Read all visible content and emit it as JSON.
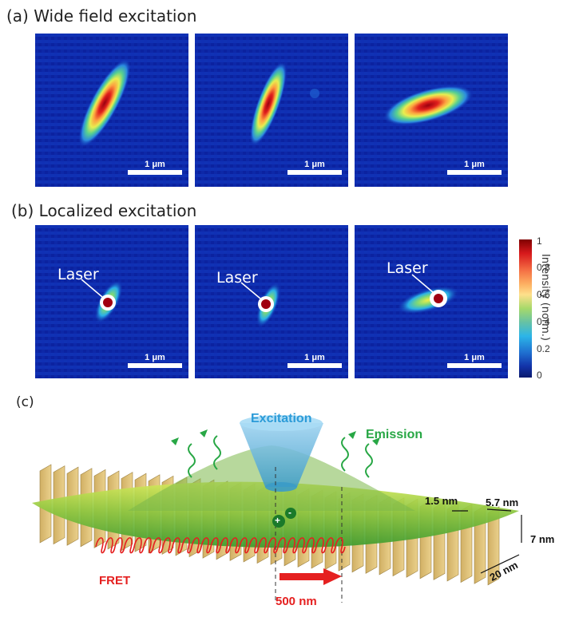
{
  "panel_a": {
    "title": "(a) Wide field excitation"
  },
  "panel_b": {
    "title": "(b) Localized excitation",
    "laser_label": "Laser"
  },
  "panel_c": {
    "label": "(c)",
    "excitation": "Excitation",
    "emission": "Emission",
    "fret": "FRET",
    "plus": "+",
    "minus": "-",
    "distance": "500 nm",
    "spacing": "1.5 nm",
    "thickness": "5.7 nm",
    "height": "7 nm",
    "length": "20 nm"
  },
  "scale_bar": "1 μm",
  "colorbar": {
    "label": "Intensity (norm.)",
    "ticks": [
      "1",
      "0.8",
      "0.6",
      "0.4",
      "0.2",
      "0"
    ]
  },
  "colors": {
    "background": "#0a1f9e",
    "hot": "#b2001a",
    "excitation": "#2b9bd8",
    "emission": "#28a745",
    "fret": "#e52020"
  }
}
